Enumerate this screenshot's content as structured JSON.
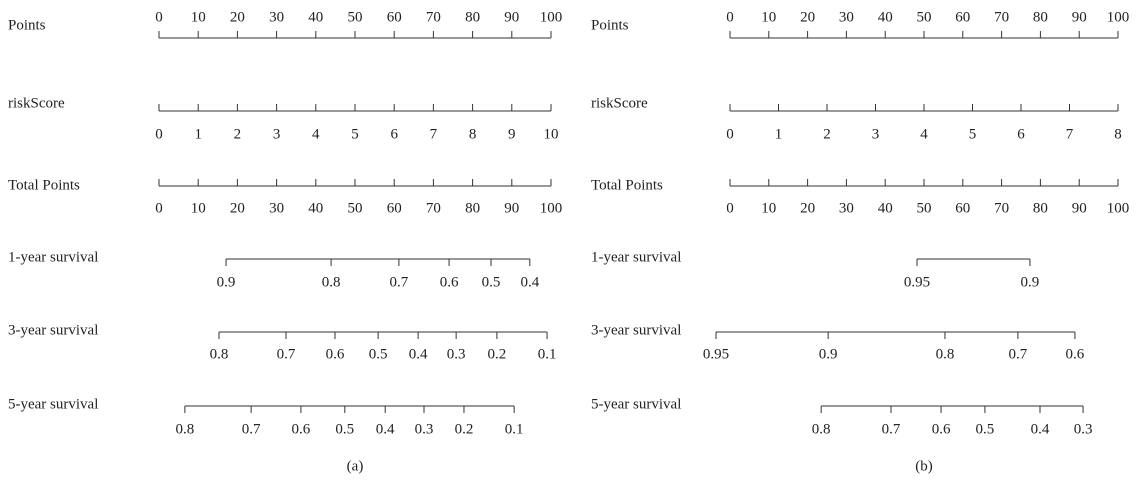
{
  "chart_data": [
    {
      "type": "nomogram",
      "caption": "(a)",
      "xlim": [
        0,
        100
      ],
      "rows": [
        {
          "name": "Points",
          "ticks": [
            0,
            10,
            20,
            30,
            40,
            50,
            60,
            70,
            80,
            90,
            100
          ]
        },
        {
          "name": "riskScore",
          "ticks": [
            0,
            1,
            2,
            3,
            4,
            5,
            6,
            7,
            8,
            9,
            10
          ],
          "positions": [
            0,
            10,
            20,
            30,
            40,
            50,
            60,
            70,
            80,
            90,
            100
          ]
        },
        {
          "name": "Total Points",
          "ticks": [
            0,
            10,
            20,
            30,
            40,
            50,
            60,
            70,
            80,
            90,
            100
          ]
        },
        {
          "name": "1-year survival",
          "ticks": [
            0.9,
            0.8,
            0.7,
            0.6,
            0.5,
            0.4
          ],
          "positions": [
            17.1,
            43.9,
            61.2,
            74,
            84.7,
            94.6
          ]
        },
        {
          "name": "3-year survival",
          "ticks": [
            0.8,
            0.7,
            0.6,
            0.5,
            0.4,
            0.3,
            0.2,
            0.1
          ],
          "positions": [
            15.3,
            32.4,
            44.9,
            55.9,
            66.1,
            75.8,
            86.2,
            99
          ]
        },
        {
          "name": "5-year survival",
          "ticks": [
            0.8,
            0.7,
            0.6,
            0.5,
            0.4,
            0.3,
            0.2,
            0.1
          ],
          "positions": [
            6.6,
            23.5,
            36.2,
            47.4,
            57.7,
            67.6,
            77.8,
            90.6
          ]
        }
      ]
    },
    {
      "type": "nomogram",
      "caption": "(b)",
      "xlim": [
        0,
        100
      ],
      "rows": [
        {
          "name": "Points",
          "ticks": [
            0,
            10,
            20,
            30,
            40,
            50,
            60,
            70,
            80,
            90,
            100
          ]
        },
        {
          "name": "riskScore",
          "ticks": [
            0,
            1,
            2,
            3,
            4,
            5,
            6,
            7,
            8
          ],
          "positions": [
            0,
            12.5,
            25,
            37.5,
            50,
            62.5,
            75,
            87.5,
            100
          ]
        },
        {
          "name": "Total Points",
          "ticks": [
            0,
            10,
            20,
            30,
            40,
            50,
            60,
            70,
            80,
            90,
            100
          ]
        },
        {
          "name": "1-year survival",
          "ticks": [
            0.95,
            0.9
          ],
          "positions": [
            48.2,
            77.3
          ]
        },
        {
          "name": "3-year survival",
          "ticks": [
            0.95,
            0.9,
            0.8,
            0.7,
            0.6
          ],
          "positions": [
            -3.6,
            25.3,
            55.4,
            74.2,
            88.9
          ]
        },
        {
          "name": "5-year survival",
          "ticks": [
            0.8,
            0.7,
            0.6,
            0.5,
            0.4,
            0.3
          ],
          "positions": [
            23.5,
            41.5,
            54.4,
            65.7,
            79.9,
            91
          ]
        }
      ]
    }
  ]
}
